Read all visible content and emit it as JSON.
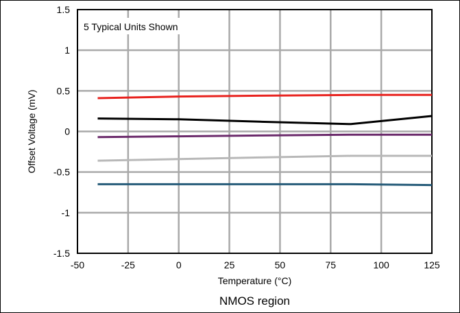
{
  "chart_data": {
    "type": "line",
    "xlabel": "Temperature (°C)",
    "ylabel": "Offset Voltage (mV)",
    "caption": "NMOS region",
    "annotation": "5 Typical Units Shown",
    "xlim": [
      -50,
      125
    ],
    "ylim": [
      -1.5,
      1.5
    ],
    "x_ticks": [
      "-50",
      "-25",
      "0",
      "25",
      "50",
      "75",
      "100",
      "125"
    ],
    "y_ticks": [
      "1.5",
      "1",
      "0.5",
      "0",
      "-0.5",
      "-1",
      "-1.5"
    ],
    "grid": true,
    "x": [
      -40,
      0,
      40,
      85,
      125
    ],
    "series": [
      {
        "color": "#e8221e",
        "values": [
          0.41,
          0.43,
          0.44,
          0.45,
          0.45
        ]
      },
      {
        "color": "#000000",
        "values": [
          0.16,
          0.15,
          0.12,
          0.09,
          0.19
        ]
      },
      {
        "color": "#6b2a6b",
        "values": [
          -0.07,
          -0.06,
          -0.05,
          -0.04,
          -0.04
        ]
      },
      {
        "color": "#b8b8b8",
        "values": [
          -0.36,
          -0.34,
          -0.32,
          -0.3,
          -0.3
        ]
      },
      {
        "color": "#245a78",
        "values": [
          -0.65,
          -0.65,
          -0.65,
          -0.65,
          -0.66
        ]
      }
    ]
  }
}
